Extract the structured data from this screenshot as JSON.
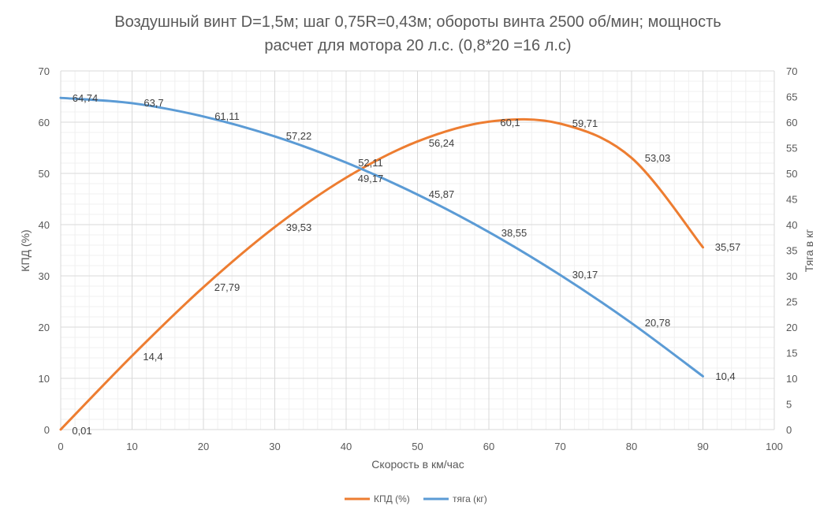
{
  "chart_data": {
    "type": "line",
    "title_line1": "Воздушный винт D=1,5м; шаг 0,75R=0,43м; обороты винта 2500 об/мин; мощность",
    "title_line2": "расчет для мотора 20 л.с. (0,8*20 =16 л.с)",
    "xlabel": "Скорость в км/час",
    "ylabel_left": "КПД (%)",
    "ylabel_right": "Тяга в кг",
    "xlim": [
      0,
      100
    ],
    "ylim_left": [
      0,
      70
    ],
    "ylim_right": [
      0,
      70
    ],
    "x_ticks": [
      "0",
      "10",
      "20",
      "30",
      "40",
      "50",
      "60",
      "70",
      "80",
      "90",
      "100"
    ],
    "y_left_ticks": [
      "0",
      "10",
      "20",
      "30",
      "40",
      "50",
      "60",
      "70"
    ],
    "y_right_ticks": [
      "0",
      "5",
      "10",
      "15",
      "20",
      "25",
      "30",
      "35",
      "40",
      "45",
      "50",
      "55",
      "60",
      "65",
      "70"
    ],
    "grid": true,
    "legend_position": "bottom",
    "series": [
      {
        "name": "КПД (%)",
        "axis": "left",
        "color": "#ED7D31",
        "x": [
          0,
          10,
          20,
          30,
          40,
          50,
          60,
          70,
          80,
          90
        ],
        "values": [
          0.01,
          14.4,
          27.79,
          39.53,
          49.17,
          56.24,
          60.1,
          59.71,
          53.03,
          35.57
        ],
        "labels": [
          "0,01",
          "14,4",
          "27,79",
          "39,53",
          "49,17",
          "56,24",
          "60,1",
          "59,71",
          "53,03",
          "35,57"
        ]
      },
      {
        "name": "тяга (кг)",
        "axis": "right",
        "color": "#5B9BD5",
        "x": [
          0,
          10,
          20,
          30,
          40,
          50,
          60,
          70,
          80,
          90
        ],
        "values": [
          64.74,
          63.7,
          61.11,
          57.22,
          52.11,
          45.87,
          38.55,
          30.17,
          20.78,
          10.4
        ],
        "labels": [
          "64,74",
          "63,7",
          "61,11",
          "57,22",
          "52,11",
          "45,87",
          "38,55",
          "30,17",
          "20,78",
          "10,4"
        ]
      }
    ]
  }
}
